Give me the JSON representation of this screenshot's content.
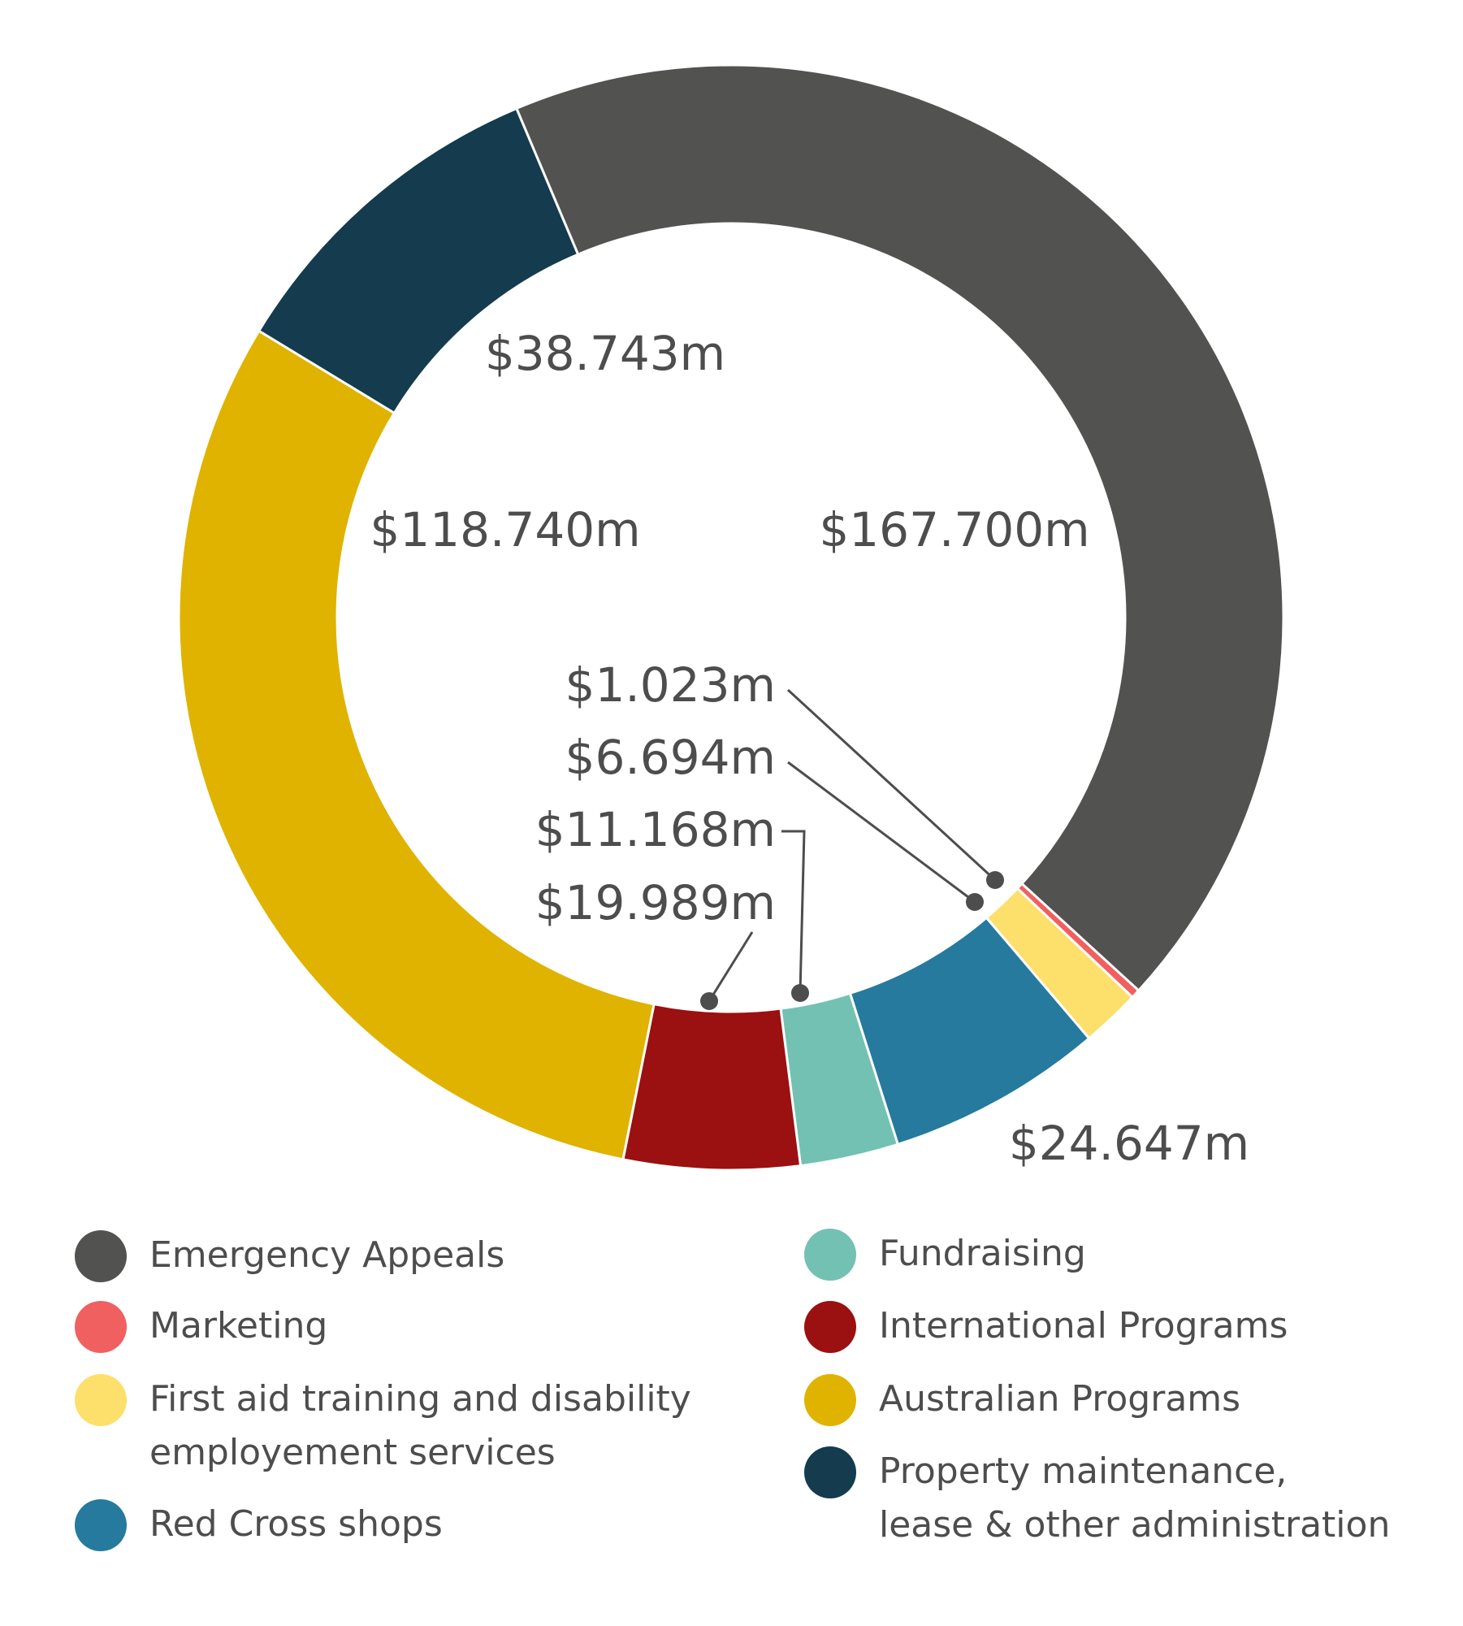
{
  "chart_data": {
    "type": "pie",
    "donut": true,
    "slices": [
      {
        "name": "Emergency Appeals",
        "value": 167.7,
        "label": "$167.700m",
        "color": "#525250"
      },
      {
        "name": "Marketing",
        "value": 1.023,
        "label": "$1.023m",
        "color": "#f06060"
      },
      {
        "name": "First aid training and disability employement services",
        "value": 6.694,
        "label": "$6.694m",
        "color": "#fddf6b"
      },
      {
        "name": "Red Cross shops",
        "value": 24.647,
        "label": "$24.647m",
        "color": "#257a9e"
      },
      {
        "name": "Fundraising",
        "value": 11.168,
        "label": "$11.168m",
        "color": "#73c1b3"
      },
      {
        "name": "International Programs",
        "value": 19.989,
        "label": "$19.989m",
        "color": "#9b1010"
      },
      {
        "name": "Australian Programs",
        "value": 118.74,
        "label": "$118.740m",
        "color": "#dfb300"
      },
      {
        "name": "Property maintenance, lease & other administration",
        "value": 38.743,
        "label": "$38.743m",
        "color": "#143b4e"
      }
    ],
    "legend_placement": "bottom"
  },
  "legend": {
    "left": [
      {
        "label": "Emergency Appeals",
        "color": "#525250"
      },
      {
        "label": "Marketing",
        "color": "#f06060"
      },
      {
        "label": "First aid training and disability\nemployement services",
        "color": "#fddf6b"
      },
      {
        "label": "Red Cross shops",
        "color": "#257a9e"
      }
    ],
    "right": [
      {
        "label": "Fundraising",
        "color": "#73c1b3"
      },
      {
        "label": "International Programs",
        "color": "#9b1010"
      },
      {
        "label": "Australian Programs",
        "color": "#dfb300"
      },
      {
        "label": "Property maintenance,\nlease & other administration",
        "color": "#143b4e"
      }
    ]
  }
}
